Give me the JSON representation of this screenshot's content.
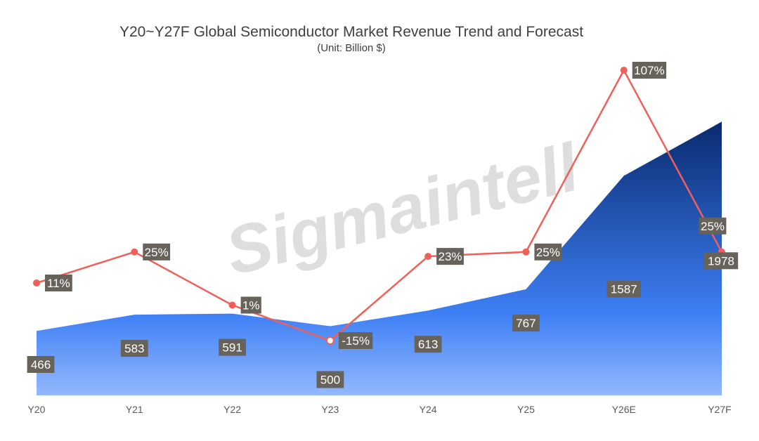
{
  "watermark": "Sigmaintell",
  "chart_data": {
    "type": "area+line",
    "title": "Y20~Y27F Global Semiconductor Market Revenue Trend and Forecast",
    "subtitle": "(Unit: Billion $)",
    "categories": [
      "Y20",
      "Y21",
      "Y22",
      "Y23",
      "Y24",
      "Y25",
      "Y26E",
      "Y27F"
    ],
    "series": [
      {
        "type": "area",
        "values": [
          466,
          583,
          591,
          500,
          613,
          767,
          1587,
          1978
        ],
        "value_labels": [
          "466",
          "583",
          "591",
          "500",
          "613",
          "767",
          "1587",
          "1978"
        ]
      },
      {
        "type": "line",
        "values": [
          11,
          25,
          1,
          -15,
          23,
          25,
          107,
          25
        ],
        "value_labels": [
          "11%",
          "25%",
          "1%",
          "-15%",
          "23%",
          "25%",
          "107%",
          "25%"
        ]
      }
    ],
    "colors": {
      "area_top": "#0a2a6e",
      "area_mid": "#3d7ff5",
      "area_bottom": "#93b8fc",
      "line": "#f0605a",
      "label_bg": "#67625a",
      "label_text": "#ffffff"
    },
    "grid": false,
    "legend": "none"
  }
}
